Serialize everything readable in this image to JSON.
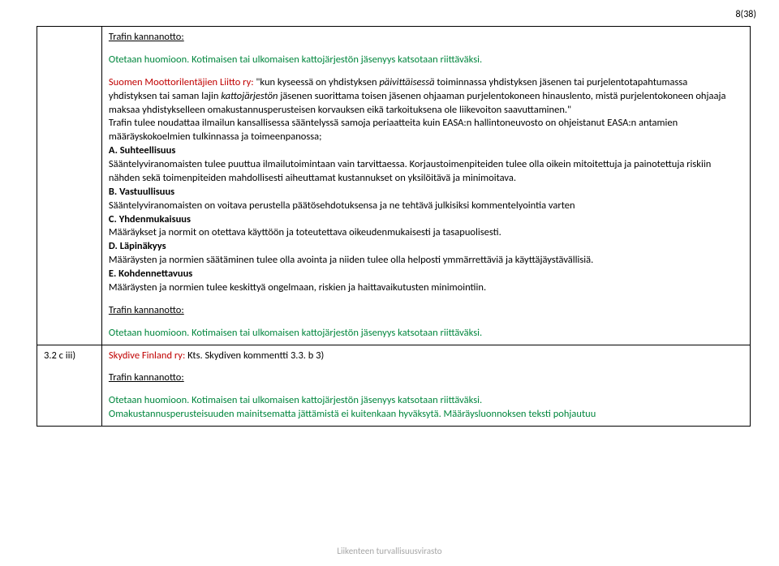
{
  "page_number": "8(38)",
  "footer": "Liikenteen turvallisuusvirasto",
  "colors": {
    "red": "#c00000",
    "green": "#00863d",
    "footer_gray": "#a6a6a6",
    "border": "#000000",
    "background": "#ffffff",
    "text": "#000000"
  },
  "row1": {
    "trafin_label": "Trafin kannanotto:",
    "otetaan": "Otetaan huomioon. Kotimaisen tai ulkomaisen kattojärjestön jäsenyys katsotaan riittäväksi.",
    "suomen_label": "Suomen Moottorilentäjien Liitto ry:",
    "suomen_intro": " \"kun kyseessä on yhdistyksen ",
    "suomen_italic1": "päivittäisessä",
    "suomen_mid": " toiminnassa yhdistyksen jäsenen tai purjelentotapahtumassa",
    "suomen_cont1": "yhdistyksen tai saman lajin ",
    "suomen_italic2": "kattojärjestön",
    "suomen_cont2": " jäsenen suorittama toisen jäsenen ohjaaman purjelentokoneen hinauslento, mistä purjelentokoneen ohjaaja maksaa yhdistykselleen omakustannusperusteisen korvauksen eikä tarkoituksena ole liikevoiton saavuttaminen.\"",
    "trafin_tulee": "Trafin tulee noudattaa ilmailun kansallisessa sääntelyssä samoja periaatteita kuin EASA:n hallintoneuvosto on ohjeistanut EASA:n antamien määräyskokoelmien tulkinnassa ja toimeenpanossa;",
    "a_label": "A. Suhteellisuus",
    "a_text": "Sääntelyviranomaisten tulee puuttua ilmailutoimintaan vain tarvittaessa. Korjaustoimenpiteiden tulee olla oikein mitoitettuja ja painotettuja riskiin nähden sekä toimenpiteiden mahdollisesti aiheuttamat kustannukset on yksilöitävä ja minimoitava.",
    "b_label": "B. Vastuullisuus",
    "b_text": "Sääntelyviranomaisten on voitava perustella päätösehdotuksensa ja ne tehtävä julkisiksi kommentelyointia varten",
    "c_label": "C. Yhdenmukaisuus",
    "c_text": "Määräykset ja normit on otettava käyttöön ja toteutettava oikeudenmukaisesti ja tasapuolisesti.",
    "d_label": "D. Läpinäkyys",
    "d_text": "Määräysten ja normien säätäminen tulee olla avointa ja niiden tulee olla helposti ymmärrettäviä ja käyttäjäystävällisiä.",
    "e_label": "E. Kohdennettavuus",
    "e_text": "Määräysten ja normien tulee keskittyä ongelmaan, riskien ja haittavaikutusten minimointiin.",
    "trafin_label2": "Trafin kannanotto:",
    "otetaan2": "Otetaan huomioon. Kotimaisen tai ulkomaisen kattojärjestön jäsenyys katsotaan riittäväksi."
  },
  "row2": {
    "left": "3.2 c iii)",
    "skydive_label": "Skydive Finland ry:",
    "skydive_text": " Kts. Skydiven kommentti 3.3. b 3)",
    "trafin_label": "Trafin kannanotto:",
    "otetaan": "Otetaan huomioon. Kotimaisen tai ulkomaisen kattojärjestön jäsenyys katsotaan riittäväksi.",
    "omakust": "Omakustannusperusteisuuden mainitsematta jättämistä ei kuitenkaan hyväksytä. Määräysluonnoksen teksti pohjautuu"
  }
}
